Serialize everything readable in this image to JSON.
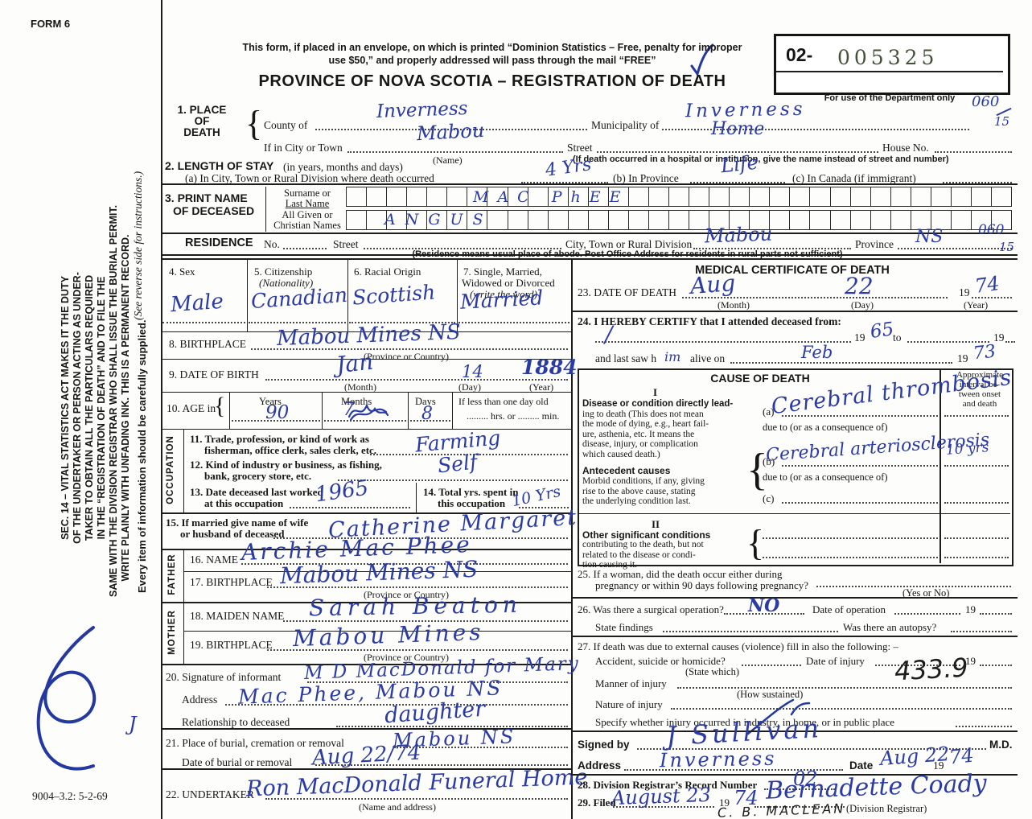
{
  "page": {
    "form_no": "FORM 6",
    "doc_code": "9004–3.2: 5-2-69"
  },
  "sidebar": {
    "sec14_lines": [
      "SEC. 14 – VITAL STATISTICS ACT MAKES IT THE DUTY",
      "OF THE UNDERTAKER OR PERSON ACTING AS UNDER-",
      "TAKER TO OBTAIN ALL THE PARTICULARS REQUIRED",
      "IN THE “REGISTRATION OF DEATH” AND TO FILE THE",
      "SAME WITH THE DIVISION REGISTRAR WHO SHALL ISSUE THE BURIAL PERMIT.",
      "WRITE PLAINLY WITH UNFADING INK. THIS IS A PERMANENT RECORD."
    ],
    "see_reverse": "(See reverse side for instructions.)",
    "every_item": "Every item of information should be carefully supplied."
  },
  "header": {
    "notice1": "This form, if placed in an envelope, on which is printed “Dominion Statistics – Free, penalty for improper",
    "notice2": "use $50,” and properly addressed will pass through the mail “FREE”",
    "title": "PROVINCE OF NOVA SCOTIA – REGISTRATION OF DEATH",
    "dept_prefix": "02-",
    "dept_number": "005325",
    "dept_caption": "For use of the Department only",
    "code_top": "060",
    "code_top2": "15",
    "code_res": "060",
    "code_res2": "15"
  },
  "s1": {
    "no1": "1. PLACE",
    "no2": "OF",
    "no3": "DEATH",
    "county_label": "County of",
    "county": "Inverness",
    "municipality_label": "Municipality of",
    "municipality": "Inverness",
    "city_label": "If in City or Town",
    "city": "Mabou",
    "name_caption": "(Name)",
    "street_label": "Street",
    "street": "Home",
    "house_label": "House No.",
    "hospital_caption": "(If death occurred in a hospital or institution, give the name instead of street and number)"
  },
  "s2": {
    "title": "2. LENGTH OF STAY",
    "subtitle": "(in years, months and days)",
    "a_label": "(a) In City, Town or Rural Division where death occurred",
    "a": "4 Yrs",
    "b_label": "(b) In Province",
    "b": "Life",
    "c_label": "(c) In Canada (if immigrant)"
  },
  "s3": {
    "title1": "3. PRINT NAME",
    "title2": "OF DECEASED",
    "surname_label1": "Surname or",
    "surname_label2": "Last Name",
    "given_label1": "All Given or",
    "given_label2": "Christian Names",
    "surname": "MAC PhEE",
    "given": "ANGUS"
  },
  "residence": {
    "title": "RESIDENCE",
    "no_label": "No.",
    "street_label": "Street",
    "city_label": "City, Town or Rural Division",
    "city": "Mabou",
    "province_label": "Province",
    "province": "NS",
    "caption": "(Residence means usual place of abode. Post Office Address for residents in rural parts not sufficient)"
  },
  "s4": {
    "label": "4. Sex",
    "value": "Male"
  },
  "s5": {
    "label": "5. Citizenship",
    "label2": "(Nationality)",
    "value": "Canadian"
  },
  "s6": {
    "label": "6. Racial Origin",
    "value": "Scottish"
  },
  "s7": {
    "label": "7. Single, Married,",
    "label2": "Widowed or Divorced",
    "label3": "(write the word)",
    "value": "Married"
  },
  "s8": {
    "label": "8. BIRTHPLACE",
    "value": "Mabou Mines   NS",
    "caption": "(Province or Country)"
  },
  "s9": {
    "label": "9. DATE OF BIRTH",
    "month": "Jan",
    "day": "14",
    "year": "1884",
    "cap_month": "(Month)",
    "cap_day": "(Day)",
    "cap_year": "(Year)"
  },
  "s10": {
    "label": "10. AGE in",
    "years_label": "Years",
    "months_label": "Months",
    "days_label": "Days",
    "years": "90",
    "months": "7",
    "days": "8",
    "less1": "If less than one day old",
    "less2": "hrs. or",
    "less3": "min."
  },
  "occupation": {
    "strip": "OCCUPATION",
    "l11a": "11. Trade, profession, or kind of work as",
    "l11b": "fisherman, office clerk, sales clerk, etc.",
    "v11": "Farming",
    "l12a": "12. Kind of industry or business, as fishing,",
    "l12b": "bank, grocery store, etc.",
    "v12": "Self",
    "l13a": "13. Date deceased last worked",
    "l13b": "at this occupation",
    "v13": "1965",
    "l14a": "14. Total yrs. spent in",
    "l14b": "this occupation",
    "v14": "10 Yrs"
  },
  "s15": {
    "l1": "15. If married give name of wife",
    "l2": "or husband of deceased",
    "value": "Catherine Margaret"
  },
  "father": {
    "strip": "FATHER",
    "l16": "16. NAME",
    "v16": "Archie Mac Phee",
    "l17": "17. BIRTHPLACE",
    "v17": "Mabou Mines   NS",
    "cap": "(Province or Country)"
  },
  "mother": {
    "strip": "MOTHER",
    "l18": "18. MAIDEN NAME",
    "v18": "Sarah Beaton",
    "l19": "19. BIRTHPLACE",
    "v19": "Mabou Mines",
    "cap": "(Province or Country)"
  },
  "s20": {
    "l1": "20. Signature of informant",
    "v1": "M D MacDonald for Mary",
    "l2": "Address",
    "v2": "Mac Phee,   Mabou NS",
    "l3": "Relationship to deceased",
    "v3": "daughter"
  },
  "s21": {
    "l1": "21. Place of burial, cremation or removal",
    "v1": "Mabou   NS",
    "l2": "Date of burial or removal",
    "v2": "Aug 22/74"
  },
  "s22": {
    "label": "22. UNDERTAKER",
    "value": "Ron MacDonald Funeral Home",
    "cap": "(Name and address)"
  },
  "medical": {
    "title": "MEDICAL CERTIFICATE OF DEATH",
    "s23": {
      "label": "23. DATE OF DEATH",
      "month": "Aug",
      "day": "22",
      "y19": "19",
      "year": "74",
      "cap_month": "(Month)",
      "cap_day": "(Day)",
      "cap_year": "(Year)"
    },
    "s24": {
      "label": "24. I HEREBY CERTIFY that I attended deceased from:",
      "from_mark": "/",
      "y19a": "19",
      "from_year": "65",
      "to": "to",
      "y19b": "19",
      "lastsaw1": "and last saw h",
      "him": "im",
      "lastsaw2": "alive on",
      "month": "Feb",
      "y19c": "19",
      "year": "73"
    },
    "cause": {
      "title": "CAUSE OF DEATH",
      "interval": [
        "Approximate",
        "interval be-",
        "tween onset",
        "and death"
      ],
      "roman1": "I",
      "p1": [
        "Disease or condition directly lead-",
        "ing to death (This does not mean",
        "the mode of dying, e.g., heart fail-",
        "ure, asthenia, etc. It means the",
        "disease, injury, or complication",
        "which caused death.)"
      ],
      "a_label": "(a)",
      "a_value": "Cerebral thrombosis",
      "due_a": "due to (or as a consequence of)",
      "ante_title": "Antecedent causes",
      "ante": [
        "Morbid conditions, if any, giving",
        "rise to the above cause, stating",
        "the underlying condition last."
      ],
      "b_label": "(b)",
      "b_value": "Cerebral arteriosclerosis",
      "b_interval": "10 yrs",
      "due_b": "due to (or as a consequence of)",
      "c_label": "(c)",
      "roman2": "II",
      "other_title": "Other significant conditions",
      "other": [
        "contributing to the death, but not",
        "related to the disease or condi-",
        "tion causing it."
      ]
    },
    "s25": {
      "l1": "25. If a woman, did the death occur either during",
      "l2": "pregnancy or within 90 days following pregnancy?",
      "cap": "(Yes or No)"
    },
    "s26": {
      "l1": "26. Was there a surgical operation?",
      "v1": "NO",
      "l2": "Date of operation",
      "y19": "19",
      "l3": "State findings",
      "l4": "Was there an autopsy?"
    },
    "s27": {
      "l1": "27. If death was due to external causes (violence) fill in also the following: –",
      "l2": "Accident, suicide or homicide?",
      "cap2": "(State which)",
      "l3": "Date of injury",
      "y19": "19",
      "l4": "Manner of injury",
      "cap4": "(How sustained)",
      "icd": "433.9",
      "l5": "Nature of injury",
      "l6": "Specify whether injury occurred in industry, in home, or in public place"
    },
    "signed": {
      "l1": "Signed by",
      "v1": "J Sullivan",
      "md": "M.D.",
      "l2": "Address",
      "v2": "Inverness",
      "l3": "Date",
      "v3": "Aug 22",
      "y19": "19",
      "year": "74"
    },
    "s28": {
      "label": "28. Division Registrar’s Record Number",
      "value": "02"
    },
    "s29": {
      "label": "29. Filed",
      "date": "August 23",
      "y19": "19",
      "year": "74",
      "registrar": "Bernadette Coady",
      "cap": "(Division Registrar)",
      "printed": "C. B. MACLEAN"
    }
  }
}
